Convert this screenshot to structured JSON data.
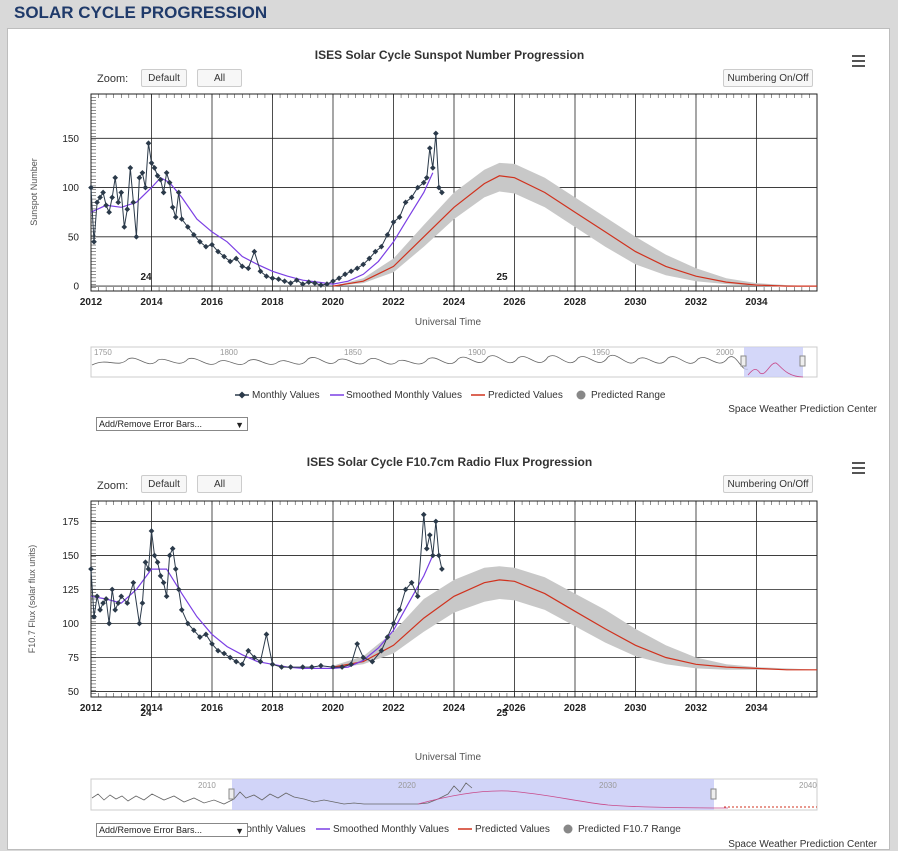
{
  "page": {
    "title": "SOLAR CYCLE PROGRESSION"
  },
  "charts": [
    {
      "title": "ISES Solar Cycle Sunspot Number Progression",
      "zoom_label": "Zoom:",
      "zoom_buttons": [
        "Default",
        "All"
      ],
      "numbering_button": "Numbering On/Off",
      "ylabel": "Sunspot Number",
      "xlabel": "Universal Time",
      "cycle_labels": [
        "24",
        "25"
      ],
      "navigator_ticks": [
        "1750",
        "1800",
        "1850",
        "1900",
        "1950",
        "2000"
      ],
      "legend": [
        "Monthly Values",
        "Smoothed Monthly Values",
        "Predicted Values",
        "Predicted Range"
      ],
      "credit": "Space Weather Prediction Center",
      "error_bars_select": "Add/Remove Error Bars..."
    },
    {
      "title": "ISES Solar Cycle F10.7cm Radio Flux Progression",
      "zoom_label": "Zoom:",
      "zoom_buttons": [
        "Default",
        "All"
      ],
      "numbering_button": "Numbering On/Off",
      "ylabel": "F10.7 Flux (solar flux units)",
      "xlabel": "Universal Time",
      "cycle_labels": [
        "24",
        "25"
      ],
      "navigator_ticks": [
        "2010",
        "2020",
        "2030",
        "2040"
      ],
      "legend": [
        "Monthly Values",
        "Smoothed Monthly Values",
        "Predicted Values",
        "Predicted F10.7 Range"
      ],
      "credit": "Space Weather Prediction Center",
      "error_bars_select": "Add/Remove Error Bars..."
    }
  ],
  "colors": {
    "monthly": "#2b3a4a",
    "smoothed": "#7b3fe4",
    "predicted": "#d0321e",
    "range": "#c8c8c8",
    "navigator_band": "#c9cdf7"
  },
  "chart_data": [
    {
      "type": "line",
      "title": "ISES Solar Cycle Sunspot Number Progression",
      "xlabel": "Universal Time",
      "ylabel": "Sunspot Number",
      "xlim": [
        2012,
        2036
      ],
      "ylim": [
        -5,
        195
      ],
      "xticks": [
        2012,
        2014,
        2016,
        2018,
        2020,
        2022,
        2024,
        2026,
        2028,
        2030,
        2032,
        2034
      ],
      "yticks": [
        0,
        50,
        100,
        150
      ],
      "series": [
        {
          "name": "Monthly Values",
          "x": [
            2012.0,
            2012.1,
            2012.2,
            2012.3,
            2012.4,
            2012.5,
            2012.6,
            2012.7,
            2012.8,
            2012.9,
            2013.0,
            2013.1,
            2013.2,
            2013.3,
            2013.4,
            2013.5,
            2013.6,
            2013.7,
            2013.8,
            2013.9,
            2014.0,
            2014.1,
            2014.2,
            2014.3,
            2014.4,
            2014.5,
            2014.6,
            2014.7,
            2014.8,
            2014.9,
            2015.0,
            2015.2,
            2015.4,
            2015.6,
            2015.8,
            2016.0,
            2016.2,
            2016.4,
            2016.6,
            2016.8,
            2017.0,
            2017.2,
            2017.4,
            2017.6,
            2017.8,
            2018.0,
            2018.2,
            2018.4,
            2018.6,
            2018.8,
            2019.0,
            2019.2,
            2019.4,
            2019.6,
            2019.8,
            2020.0,
            2020.2,
            2020.4,
            2020.6,
            2020.8,
            2021.0,
            2021.2,
            2021.4,
            2021.6,
            2021.8,
            2022.0,
            2022.2,
            2022.4,
            2022.6,
            2022.8,
            2023.0,
            2023.1,
            2023.2,
            2023.3,
            2023.4,
            2023.5,
            2023.6
          ],
          "y": [
            100,
            45,
            85,
            90,
            95,
            82,
            75,
            90,
            110,
            85,
            95,
            60,
            78,
            120,
            85,
            50,
            110,
            115,
            100,
            145,
            125,
            120,
            112,
            108,
            95,
            115,
            105,
            80,
            70,
            95,
            68,
            60,
            52,
            45,
            40,
            42,
            35,
            30,
            25,
            28,
            20,
            18,
            35,
            15,
            10,
            8,
            7,
            5,
            3,
            6,
            2,
            4,
            3,
            1,
            2,
            5,
            8,
            12,
            15,
            18,
            22,
            28,
            35,
            40,
            52,
            65,
            70,
            85,
            90,
            100,
            105,
            110,
            140,
            120,
            155,
            100,
            95
          ]
        },
        {
          "name": "Smoothed Monthly Values",
          "x": [
            2012.0,
            2012.5,
            2013.0,
            2013.5,
            2014.0,
            2014.3,
            2014.6,
            2015.0,
            2015.5,
            2016.0,
            2016.5,
            2017.0,
            2017.5,
            2018.0,
            2018.5,
            2019.0,
            2019.5,
            2020.0,
            2020.5,
            2021.0,
            2021.5,
            2022.0,
            2022.5,
            2023.0,
            2023.3
          ],
          "y": [
            75,
            82,
            80,
            85,
            100,
            110,
            105,
            90,
            68,
            55,
            45,
            30,
            22,
            15,
            10,
            6,
            4,
            2,
            5,
            12,
            25,
            45,
            70,
            95,
            115
          ]
        },
        {
          "name": "Predicted Values",
          "x": [
            2020.0,
            2021.0,
            2022.0,
            2023.0,
            2024.0,
            2025.0,
            2025.5,
            2026.0,
            2027.0,
            2028.0,
            2029.0,
            2030.0,
            2031.0,
            2032.0,
            2033.0,
            2034.0,
            2035.0,
            2036.0
          ],
          "y": [
            0,
            5,
            20,
            50,
            80,
            104,
            112,
            110,
            95,
            75,
            55,
            35,
            20,
            10,
            4,
            1,
            0,
            0
          ]
        },
        {
          "name": "Predicted Range",
          "x": [
            2020.0,
            2021.0,
            2022.0,
            2023.0,
            2024.0,
            2025.0,
            2025.5,
            2026.0,
            2027.0,
            2028.0,
            2029.0,
            2030.0,
            2031.0,
            2032.0,
            2033.0,
            2034.0,
            2035.0,
            2036.0
          ],
          "y_low": [
            0,
            3,
            14,
            40,
            68,
            90,
            96,
            94,
            80,
            60,
            40,
            22,
            11,
            5,
            2,
            0,
            0,
            0
          ],
          "y_high": [
            0,
            8,
            28,
            62,
            95,
            118,
            125,
            124,
            110,
            90,
            70,
            50,
            32,
            18,
            8,
            3,
            1,
            0
          ]
        }
      ]
    },
    {
      "type": "line",
      "title": "ISES Solar Cycle F10.7cm Radio Flux Progression",
      "xlabel": "Universal Time",
      "ylabel": "F10.7 Flux (solar flux units)",
      "xlim": [
        2012,
        2036
      ],
      "ylim": [
        46,
        190
      ],
      "xticks": [
        2012,
        2014,
        2016,
        2018,
        2020,
        2022,
        2024,
        2026,
        2028,
        2030,
        2032,
        2034
      ],
      "yticks": [
        50,
        75,
        100,
        125,
        150,
        175
      ],
      "series": [
        {
          "name": "Monthly Values",
          "x": [
            2012.0,
            2012.1,
            2012.2,
            2012.3,
            2012.4,
            2012.5,
            2012.6,
            2012.7,
            2012.8,
            2012.9,
            2013.0,
            2013.2,
            2013.4,
            2013.6,
            2013.7,
            2013.8,
            2013.9,
            2014.0,
            2014.1,
            2014.2,
            2014.3,
            2014.4,
            2014.5,
            2014.6,
            2014.7,
            2014.8,
            2014.9,
            2015.0,
            2015.2,
            2015.4,
            2015.6,
            2015.8,
            2016.0,
            2016.2,
            2016.4,
            2016.6,
            2016.8,
            2017.0,
            2017.2,
            2017.4,
            2017.6,
            2017.8,
            2018.0,
            2018.3,
            2018.6,
            2019.0,
            2019.3,
            2019.6,
            2020.0,
            2020.3,
            2020.6,
            2020.8,
            2021.0,
            2021.3,
            2021.6,
            2021.8,
            2022.0,
            2022.2,
            2022.4,
            2022.6,
            2022.8,
            2023.0,
            2023.1,
            2023.2,
            2023.3,
            2023.4,
            2023.5,
            2023.6
          ],
          "y": [
            140,
            105,
            120,
            110,
            115,
            118,
            100,
            125,
            110,
            115,
            120,
            115,
            130,
            100,
            115,
            145,
            140,
            168,
            150,
            145,
            135,
            130,
            120,
            150,
            155,
            140,
            125,
            110,
            100,
            95,
            90,
            92,
            85,
            80,
            78,
            75,
            72,
            70,
            80,
            75,
            72,
            92,
            70,
            68,
            68,
            68,
            68,
            69,
            68,
            68,
            70,
            85,
            75,
            72,
            80,
            90,
            100,
            110,
            125,
            130,
            120,
            180,
            155,
            165,
            150,
            175,
            150,
            140
          ]
        },
        {
          "name": "Smoothed Monthly Values",
          "x": [
            2012.0,
            2012.5,
            2013.0,
            2013.5,
            2014.0,
            2014.5,
            2015.0,
            2015.5,
            2016.0,
            2016.5,
            2017.0,
            2017.5,
            2018.0,
            2018.5,
            2019.0,
            2019.5,
            2020.0,
            2020.5,
            2021.0,
            2021.5,
            2022.0,
            2022.5,
            2023.0,
            2023.3
          ],
          "y": [
            120,
            118,
            115,
            125,
            140,
            140,
            122,
            105,
            92,
            83,
            77,
            72,
            70,
            68,
            67,
            67,
            67,
            68,
            73,
            82,
            95,
            115,
            135,
            150
          ]
        },
        {
          "name": "Predicted Values",
          "x": [
            2020.0,
            2021.0,
            2022.0,
            2023.0,
            2024.0,
            2025.0,
            2025.5,
            2026.0,
            2027.0,
            2028.0,
            2029.0,
            2030.0,
            2031.0,
            2032.0,
            2033.0,
            2034.0,
            2035.0,
            2036.0
          ],
          "y": [
            68,
            72,
            84,
            104,
            120,
            130,
            132,
            131,
            122,
            109,
            96,
            84,
            75,
            70,
            68,
            67,
            66,
            66
          ]
        },
        {
          "name": "Predicted F10.7 Range",
          "x": [
            2020.0,
            2021.0,
            2022.0,
            2023.0,
            2024.0,
            2025.0,
            2025.5,
            2026.0,
            2027.0,
            2028.0,
            2029.0,
            2030.0,
            2031.0,
            2032.0,
            2033.0,
            2034.0,
            2035.0,
            2036.0
          ],
          "y_low": [
            67,
            70,
            78,
            94,
            108,
            116,
            118,
            117,
            110,
            98,
            86,
            76,
            70,
            67,
            66,
            66,
            66,
            66
          ],
          "y_high": [
            69,
            76,
            94,
            118,
            132,
            141,
            142,
            141,
            134,
            122,
            110,
            96,
            84,
            75,
            70,
            68,
            67,
            66
          ]
        }
      ]
    }
  ]
}
